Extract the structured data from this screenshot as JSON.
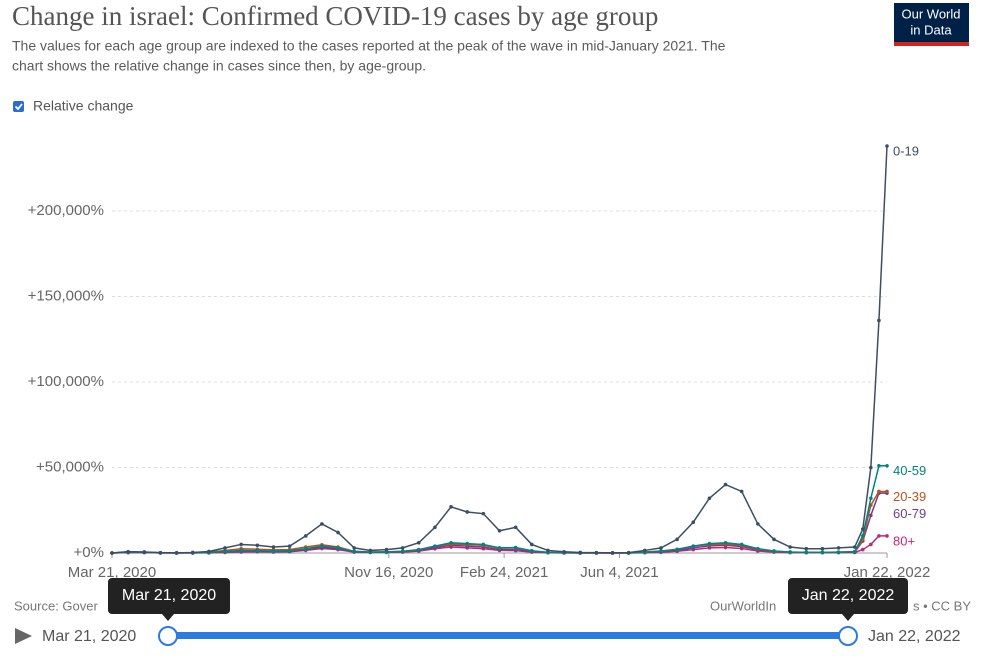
{
  "chart_data": {
    "type": "line",
    "title": "Change in israel: Confirmed COVID-19 cases by age group",
    "subtitle": [
      "The values for each age group are indexed to the cases reported at the peak of the wave in mid-January 2021. The",
      "chart shows the relative change in cases since then, by age-group."
    ],
    "toggle": "Relative change",
    "x": [
      "2020-03-21",
      "2020-04-04",
      "2020-04-18",
      "2020-05-02",
      "2020-05-16",
      "2020-05-30",
      "2020-06-13",
      "2020-06-27",
      "2020-07-11",
      "2020-07-25",
      "2020-08-08",
      "2020-08-22",
      "2020-09-05",
      "2020-09-19",
      "2020-10-03",
      "2020-10-17",
      "2020-10-31",
      "2020-11-14",
      "2020-11-28",
      "2020-12-12",
      "2020-12-26",
      "2021-01-09",
      "2021-01-23",
      "2021-02-06",
      "2021-02-20",
      "2021-03-06",
      "2021-03-20",
      "2021-04-03",
      "2021-04-17",
      "2021-05-01",
      "2021-05-15",
      "2021-05-29",
      "2021-06-12",
      "2021-06-26",
      "2021-07-10",
      "2021-07-24",
      "2021-08-07",
      "2021-08-21",
      "2021-09-04",
      "2021-09-18",
      "2021-10-02",
      "2021-10-16",
      "2021-10-30",
      "2021-11-13",
      "2021-11-27",
      "2021-12-11",
      "2021-12-25",
      "2022-01-01",
      "2022-01-08",
      "2022-01-15",
      "2022-01-22"
    ],
    "xlim": [
      "2020-03-21",
      "2022-01-22"
    ],
    "xticks": [
      {
        "value": "2020-03-21",
        "label": "Mar 21, 2020"
      },
      {
        "value": "2020-11-16",
        "label": "Nov 16, 2020"
      },
      {
        "value": "2021-02-24",
        "label": "Feb 24, 2021"
      },
      {
        "value": "2021-06-04",
        "label": "Jun 4, 2021"
      },
      {
        "value": "2022-01-22",
        "label": "Jan 22, 2022"
      }
    ],
    "ylim": [
      0,
      240000
    ],
    "yticks": [
      {
        "value": 0,
        "label": "+0%"
      },
      {
        "value": 50000,
        "label": "+50,000%"
      },
      {
        "value": 100000,
        "label": "+100,000%"
      },
      {
        "value": 150000,
        "label": "+150,000%"
      },
      {
        "value": 200000,
        "label": "+200,000%"
      }
    ],
    "grid": true,
    "series": [
      {
        "name": "0-19",
        "color": "#3c4e66",
        "values": [
          0,
          800,
          600,
          200,
          100,
          300,
          900,
          3000,
          5000,
          4500,
          3500,
          4000,
          10000,
          17000,
          12000,
          3000,
          1500,
          2000,
          3000,
          6000,
          15000,
          27000,
          24000,
          23000,
          13000,
          15000,
          5000,
          1500,
          700,
          300,
          200,
          100,
          200,
          1500,
          3000,
          8000,
          18000,
          32000,
          40000,
          36000,
          17000,
          8000,
          3500,
          2500,
          2500,
          3000,
          3500,
          14000,
          50000,
          136000,
          238000
        ]
      },
      {
        "name": "40-59",
        "color": "#00847e",
        "values": [
          0,
          500,
          400,
          100,
          50,
          100,
          300,
          900,
          1500,
          1400,
          1100,
          1300,
          2500,
          4000,
          3000,
          900,
          500,
          600,
          900,
          1800,
          4000,
          6000,
          5500,
          5000,
          3000,
          3200,
          1300,
          400,
          200,
          100,
          80,
          50,
          80,
          500,
          1000,
          2000,
          4000,
          5500,
          6000,
          5000,
          2500,
          1200,
          600,
          400,
          400,
          500,
          700,
          10000,
          32000,
          51000,
          51000
        ]
      },
      {
        "name": "20-39",
        "color": "#b5541c",
        "values": [
          0,
          600,
          500,
          150,
          80,
          200,
          600,
          1500,
          2500,
          2200,
          1800,
          2000,
          3500,
          4800,
          3500,
          1000,
          600,
          700,
          1000,
          2000,
          4000,
          5200,
          5000,
          4500,
          2800,
          3000,
          1200,
          400,
          200,
          100,
          80,
          50,
          80,
          600,
          1200,
          2200,
          4000,
          5000,
          5200,
          4500,
          2200,
          1000,
          500,
          400,
          400,
          500,
          800,
          8000,
          28000,
          36000,
          36000
        ]
      },
      {
        "name": "60-79",
        "color": "#6d3e91",
        "values": [
          0,
          300,
          300,
          100,
          40,
          60,
          200,
          600,
          1000,
          1000,
          800,
          900,
          2000,
          3200,
          2500,
          700,
          400,
          500,
          700,
          1500,
          3200,
          4500,
          4000,
          3500,
          2000,
          2000,
          800,
          250,
          100,
          60,
          40,
          30,
          50,
          300,
          700,
          1500,
          3000,
          4200,
          4500,
          3800,
          1800,
          800,
          400,
          300,
          300,
          400,
          500,
          7000,
          22000,
          35000,
          35000
        ]
      },
      {
        "name": "80+",
        "color": "#c0277a",
        "values": [
          0,
          200,
          250,
          80,
          30,
          40,
          100,
          300,
          600,
          700,
          600,
          700,
          1500,
          2600,
          2000,
          500,
          300,
          350,
          500,
          1100,
          2500,
          3500,
          3000,
          2500,
          1500,
          1400,
          500,
          150,
          60,
          30,
          20,
          20,
          30,
          150,
          400,
          1000,
          2000,
          3000,
          3200,
          2600,
          1200,
          500,
          250,
          200,
          200,
          250,
          300,
          2000,
          5000,
          10000,
          10000
        ]
      }
    ]
  },
  "source": "Source: Gover",
  "credit_a": "OurWorldIn",
  "credit_b": "s • CC BY",
  "logo": [
    "Our World",
    "in Data"
  ],
  "timeline": {
    "start": "Mar 21, 2020",
    "end": "Jan 22, 2022"
  }
}
